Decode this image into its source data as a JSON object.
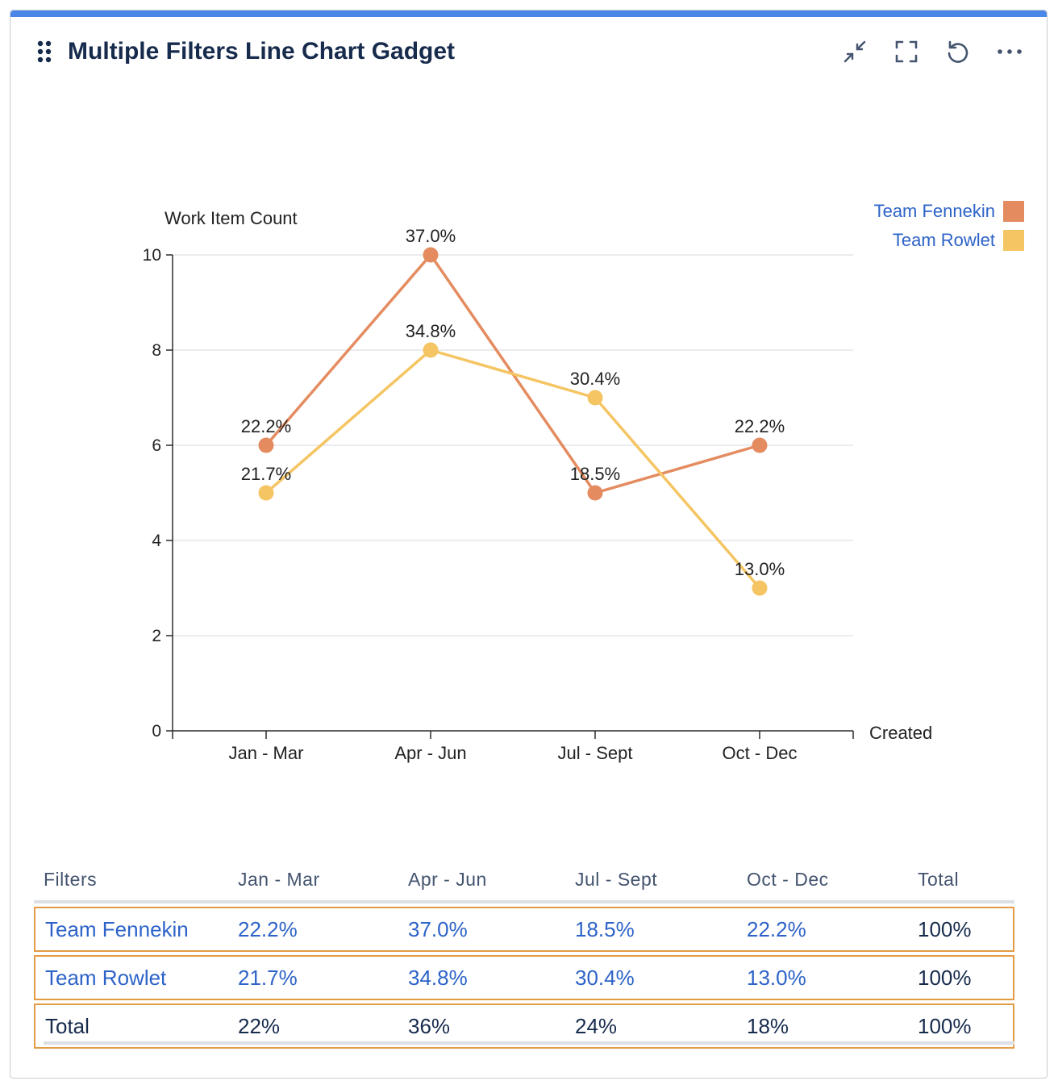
{
  "gadget": {
    "title": "Multiple Filters Line Chart Gadget",
    "actions": [
      {
        "name": "minimize-icon"
      },
      {
        "name": "fullscreen-icon"
      },
      {
        "name": "refresh-icon"
      },
      {
        "name": "more-icon"
      }
    ]
  },
  "colors": {
    "accent": "#4a86e8",
    "fennekin": "#e48c60",
    "rowlet": "#f5c563",
    "link": "#2d63c8",
    "highlight_border": "#e39b45"
  },
  "chart_data": {
    "type": "line",
    "ylabel": "Work Item Count",
    "xlabel": "Created",
    "categories": [
      "Jan - Mar",
      "Apr - Jun",
      "Jul - Sept",
      "Oct - Dec"
    ],
    "ylim": [
      0,
      10
    ],
    "yticks": [
      0,
      2,
      4,
      6,
      8,
      10
    ],
    "grid": true,
    "legend_position": "top-right",
    "series": [
      {
        "name": "Team Fennekin",
        "values": [
          6,
          10,
          5,
          6
        ],
        "labels": [
          "22.2%",
          "37.0%",
          "18.5%",
          "22.2%"
        ],
        "color": "#e48c60"
      },
      {
        "name": "Team Rowlet",
        "values": [
          5,
          8,
          7,
          3
        ],
        "labels": [
          "21.7%",
          "34.8%",
          "30.4%",
          "13.0%"
        ],
        "color": "#f5c563"
      }
    ]
  },
  "table": {
    "headers": [
      "Filters",
      "Jan - Mar",
      "Apr - Jun",
      "Jul - Sept",
      "Oct - Dec",
      "Total"
    ],
    "rows": [
      {
        "cells": [
          "Team Fennekin",
          "22.2%",
          "37.0%",
          "18.5%",
          "22.2%",
          "100%"
        ],
        "linked": true
      },
      {
        "cells": [
          "Team Rowlet",
          "21.7%",
          "34.8%",
          "30.4%",
          "13.0%",
          "100%"
        ],
        "linked": true
      },
      {
        "cells": [
          "Total",
          "22%",
          "36%",
          "24%",
          "18%",
          "100%"
        ],
        "linked": false
      }
    ]
  }
}
